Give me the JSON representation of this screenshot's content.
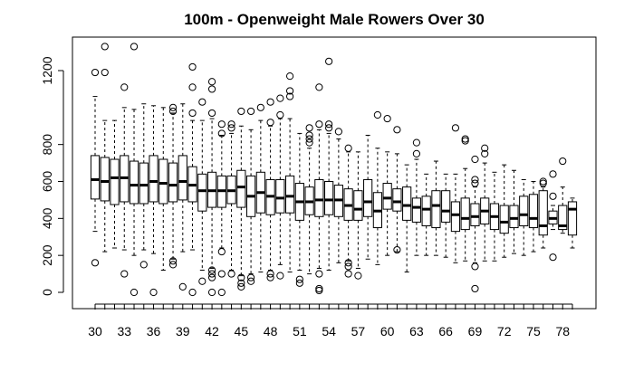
{
  "chart_data": {
    "type": "boxplot",
    "title": "100m - Openweight Male Rowers Over 30",
    "xlabel": "",
    "ylabel": "",
    "x": [
      30,
      31,
      32,
      33,
      34,
      35,
      36,
      37,
      38,
      39,
      40,
      41,
      42,
      43,
      44,
      45,
      46,
      47,
      48,
      49,
      50,
      51,
      52,
      53,
      54,
      55,
      56,
      57,
      58,
      59,
      60,
      61,
      62,
      63,
      64,
      65,
      66,
      67,
      68,
      69,
      70,
      71,
      72,
      73,
      74,
      75,
      76,
      77,
      78,
      79
    ],
    "x_tick_labels": [
      "30",
      "33",
      "36",
      "39",
      "42",
      "45",
      "48",
      "51",
      "54",
      "57",
      "60",
      "63",
      "66",
      "69",
      "72",
      "75",
      "78"
    ],
    "y_ticks": [
      0,
      200,
      400,
      600,
      800,
      1200
    ],
    "ylim": [
      -30,
      1360
    ],
    "grid": false,
    "boxes": [
      {
        "x": 30,
        "whisker_low": 330,
        "q1": 505,
        "median": 610,
        "q3": 740,
        "whisker_high": 1060,
        "outliers": [
          160,
          1190
        ]
      },
      {
        "x": 31,
        "whisker_low": 220,
        "q1": 495,
        "median": 600,
        "q3": 730,
        "whisker_high": 930,
        "outliers": [
          1190,
          1330
        ]
      },
      {
        "x": 32,
        "whisker_low": 240,
        "q1": 475,
        "median": 620,
        "q3": 720,
        "whisker_high": 930,
        "outliers": []
      },
      {
        "x": 33,
        "whisker_low": 230,
        "q1": 490,
        "median": 620,
        "q3": 740,
        "whisker_high": 1000,
        "outliers": [
          100,
          1110
        ]
      },
      {
        "x": 34,
        "whisker_low": 200,
        "q1": 480,
        "median": 580,
        "q3": 710,
        "whisker_high": 990,
        "outliers": [
          0,
          1330
        ]
      },
      {
        "x": 35,
        "whisker_low": 230,
        "q1": 480,
        "median": 580,
        "q3": 700,
        "whisker_high": 1020,
        "outliers": [
          150
        ]
      },
      {
        "x": 36,
        "whisker_low": 210,
        "q1": 490,
        "median": 600,
        "q3": 740,
        "whisker_high": 1010,
        "outliers": [
          0
        ]
      },
      {
        "x": 37,
        "whisker_low": 120,
        "q1": 480,
        "median": 590,
        "q3": 720,
        "whisker_high": 1000,
        "outliers": []
      },
      {
        "x": 38,
        "whisker_low": 180,
        "q1": 490,
        "median": 580,
        "q3": 700,
        "whisker_high": 970,
        "outliers": [
          150,
          170,
          980,
          1000
        ]
      },
      {
        "x": 39,
        "whisker_low": 220,
        "q1": 500,
        "median": 600,
        "q3": 740,
        "whisker_high": 1020,
        "outliers": [
          30
        ]
      },
      {
        "x": 40,
        "whisker_low": 230,
        "q1": 490,
        "median": 580,
        "q3": 680,
        "whisker_high": 930,
        "outliers": [
          0,
          970,
          1110,
          1220
        ]
      },
      {
        "x": 41,
        "whisker_low": 120,
        "q1": 440,
        "median": 550,
        "q3": 640,
        "whisker_high": 930,
        "outliers": [
          60,
          1030
        ]
      },
      {
        "x": 42,
        "whisker_low": 130,
        "q1": 460,
        "median": 550,
        "q3": 650,
        "whisker_high": 940,
        "outliers": [
          0,
          80,
          100,
          120,
          970,
          1100,
          1140
        ]
      },
      {
        "x": 43,
        "whisker_low": 240,
        "q1": 460,
        "median": 550,
        "q3": 630,
        "whisker_high": 850,
        "outliers": [
          0,
          100,
          220,
          860,
          910
        ]
      },
      {
        "x": 44,
        "whisker_low": 120,
        "q1": 480,
        "median": 550,
        "q3": 630,
        "whisker_high": 860,
        "outliers": [
          100,
          890,
          910
        ]
      },
      {
        "x": 45,
        "whisker_low": 90,
        "q1": 460,
        "median": 570,
        "q3": 660,
        "whisker_high": 900,
        "outliers": [
          30,
          50,
          80,
          980
        ]
      },
      {
        "x": 46,
        "whisker_low": 100,
        "q1": 410,
        "median": 520,
        "q3": 630,
        "whisker_high": 880,
        "outliers": [
          60,
          80,
          980
        ]
      },
      {
        "x": 47,
        "whisker_low": 110,
        "q1": 430,
        "median": 540,
        "q3": 650,
        "whisker_high": 930,
        "outliers": [
          1000
        ]
      },
      {
        "x": 48,
        "whisker_low": 120,
        "q1": 420,
        "median": 520,
        "q3": 610,
        "whisker_high": 900,
        "outliers": [
          80,
          100,
          920,
          1030
        ]
      },
      {
        "x": 49,
        "whisker_low": 150,
        "q1": 430,
        "median": 510,
        "q3": 610,
        "whisker_high": 940,
        "outliers": [
          90,
          960,
          1050
        ]
      },
      {
        "x": 50,
        "whisker_low": 110,
        "q1": 430,
        "median": 520,
        "q3": 630,
        "whisker_high": 940,
        "outliers": [
          1060,
          1090,
          1170
        ]
      },
      {
        "x": 51,
        "whisker_low": 120,
        "q1": 390,
        "median": 490,
        "q3": 590,
        "whisker_high": 860,
        "outliers": [
          50,
          70
        ]
      },
      {
        "x": 52,
        "whisker_low": 100,
        "q1": 420,
        "median": 490,
        "q3": 570,
        "whisker_high": 780,
        "outliers": [
          810,
          830,
          850,
          890
        ]
      },
      {
        "x": 53,
        "whisker_low": 130,
        "q1": 410,
        "median": 500,
        "q3": 610,
        "whisker_high": 880,
        "outliers": [
          10,
          20,
          100,
          910,
          1110
        ]
      },
      {
        "x": 54,
        "whisker_low": 120,
        "q1": 420,
        "median": 500,
        "q3": 600,
        "whisker_high": 860,
        "outliers": [
          890,
          910,
          1250
        ]
      },
      {
        "x": 55,
        "whisker_low": 160,
        "q1": 410,
        "median": 500,
        "q3": 580,
        "whisker_high": 830,
        "outliers": [
          870
        ]
      },
      {
        "x": 56,
        "whisker_low": 170,
        "q1": 390,
        "median": 470,
        "q3": 560,
        "whisker_high": 760,
        "outliers": [
          100,
          140,
          160,
          780
        ]
      },
      {
        "x": 57,
        "whisker_low": 130,
        "q1": 390,
        "median": 450,
        "q3": 550,
        "whisker_high": 760,
        "outliers": [
          90
        ]
      },
      {
        "x": 58,
        "whisker_low": 180,
        "q1": 410,
        "median": 490,
        "q3": 610,
        "whisker_high": 850,
        "outliers": []
      },
      {
        "x": 59,
        "whisker_low": 150,
        "q1": 350,
        "median": 440,
        "q3": 540,
        "whisker_high": 780,
        "outliers": [
          960
        ]
      },
      {
        "x": 60,
        "whisker_low": 200,
        "q1": 450,
        "median": 510,
        "q3": 590,
        "whisker_high": 760,
        "outliers": [
          940
        ]
      },
      {
        "x": 61,
        "whisker_low": 220,
        "q1": 440,
        "median": 490,
        "q3": 560,
        "whisker_high": 750,
        "outliers": [
          880,
          230
        ]
      },
      {
        "x": 62,
        "whisker_low": 110,
        "q1": 390,
        "median": 470,
        "q3": 570,
        "whisker_high": 690,
        "outliers": []
      },
      {
        "x": 63,
        "whisker_low": 200,
        "q1": 380,
        "median": 460,
        "q3": 510,
        "whisker_high": 720,
        "outliers": [
          750,
          810
        ]
      },
      {
        "x": 64,
        "whisker_low": 200,
        "q1": 360,
        "median": 450,
        "q3": 520,
        "whisker_high": 640,
        "outliers": []
      },
      {
        "x": 65,
        "whisker_low": 200,
        "q1": 350,
        "median": 470,
        "q3": 550,
        "whisker_high": 710,
        "outliers": []
      },
      {
        "x": 66,
        "whisker_low": 190,
        "q1": 380,
        "median": 440,
        "q3": 550,
        "whisker_high": 640,
        "outliers": []
      },
      {
        "x": 67,
        "whisker_low": 160,
        "q1": 330,
        "median": 420,
        "q3": 490,
        "whisker_high": 640,
        "outliers": [
          890
        ]
      },
      {
        "x": 68,
        "whisker_low": 170,
        "q1": 340,
        "median": 400,
        "q3": 510,
        "whisker_high": 670,
        "outliers": [
          820,
          830
        ]
      },
      {
        "x": 69,
        "whisker_low": 160,
        "q1": 360,
        "median": 410,
        "q3": 480,
        "whisker_high": 570,
        "outliers": [
          20,
          140,
          590,
          610,
          720
        ]
      },
      {
        "x": 70,
        "whisker_low": 170,
        "q1": 370,
        "median": 440,
        "q3": 510,
        "whisker_high": 700,
        "outliers": [
          750,
          780
        ]
      },
      {
        "x": 71,
        "whisker_low": 170,
        "q1": 340,
        "median": 410,
        "q3": 480,
        "whisker_high": 650,
        "outliers": []
      },
      {
        "x": 72,
        "whisker_low": 190,
        "q1": 320,
        "median": 380,
        "q3": 470,
        "whisker_high": 690,
        "outliers": []
      },
      {
        "x": 73,
        "whisker_low": 210,
        "q1": 350,
        "median": 400,
        "q3": 470,
        "whisker_high": 660,
        "outliers": []
      },
      {
        "x": 74,
        "whisker_low": 200,
        "q1": 360,
        "median": 420,
        "q3": 520,
        "whisker_high": 610,
        "outliers": []
      },
      {
        "x": 75,
        "whisker_low": 220,
        "q1": 350,
        "median": 400,
        "q3": 530,
        "whisker_high": 600,
        "outliers": []
      },
      {
        "x": 76,
        "whisker_low": 240,
        "q1": 310,
        "median": 360,
        "q3": 550,
        "whisker_high": 570,
        "outliers": [
          590,
          600
        ]
      },
      {
        "x": 77,
        "whisker_low": 340,
        "q1": 370,
        "median": 400,
        "q3": 440,
        "whisker_high": 470,
        "outliers": [
          190,
          520,
          640
        ]
      },
      {
        "x": 78,
        "whisker_low": 320,
        "q1": 340,
        "median": 360,
        "q3": 470,
        "whisker_high": 570,
        "outliers": [
          710
        ]
      },
      {
        "x": 79,
        "whisker_low": 240,
        "q1": 310,
        "median": 450,
        "q3": 490,
        "whisker_high": 510,
        "outliers": []
      }
    ]
  }
}
